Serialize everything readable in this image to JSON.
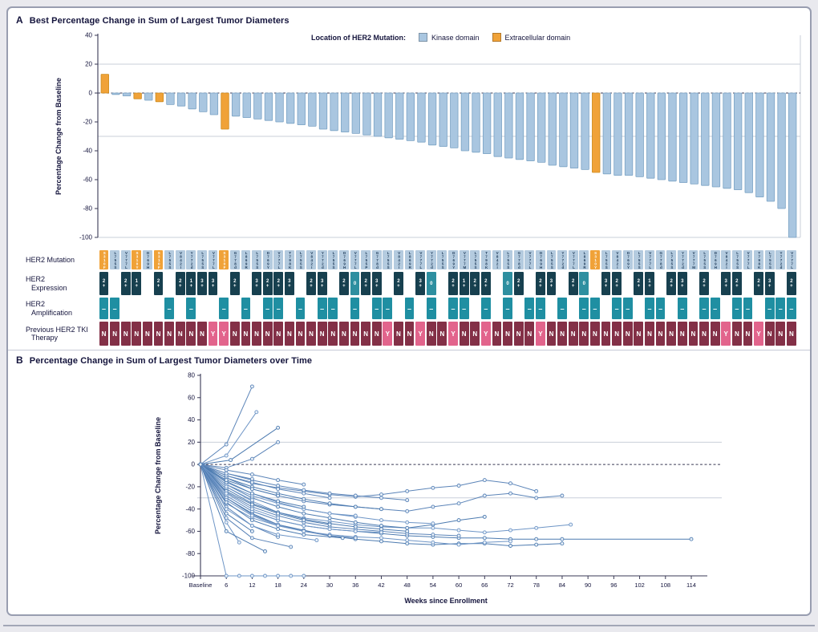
{
  "figure": {
    "colors": {
      "kinase": "#a9c6e0",
      "kinase_border": "#7aa2c4",
      "ecd": "#f0a238",
      "ecd_border": "#cd8a1c",
      "mut_cell": "#b4cbdf",
      "expression_dark": "#17404f",
      "expression_light": "#2e8fa0",
      "amplification": "#1f8fa2",
      "tki_no": "#833047",
      "tki_yes": "#e2648c",
      "line": "#5b84b8",
      "marker_fill": "#e8f0f8",
      "text": "#15153d",
      "grid": "#c9cfda",
      "axis": "#3a3a55"
    },
    "panel_a": {
      "label": "A",
      "title": "Best Percentage Change in Sum of Largest Tumor Diameters",
      "legend": {
        "title": "Location of HER2 Mutation:",
        "items": [
          {
            "label": "Kinase domain"
          },
          {
            "label": "Extracellular domain"
          }
        ]
      }
    },
    "panel_b": {
      "label": "B",
      "title": "Percentage Change in Sum of Largest Tumor Diameters over Time"
    },
    "tracks": {
      "rows": [
        {
          "id": "mutation",
          "label_lines": [
            "HER2 Mutation"
          ]
        },
        {
          "id": "expression",
          "label_lines": [
            "HER2",
            "Expression"
          ]
        },
        {
          "id": "amplification",
          "label_lines": [
            "HER2",
            "Amplification"
          ]
        },
        {
          "id": "tki",
          "label_lines": [
            "Previous HER2 TKI",
            "Therapy"
          ]
        }
      ],
      "mutation_codes": [
        "S310F",
        "L755S",
        "V777L",
        "S310Y",
        "D769H",
        "S310F",
        "L755S",
        "V842I",
        "Y772d",
        "L755S",
        "V777L",
        "S310F",
        "G778d",
        "L869R",
        "L755S",
        "D769Y",
        "V777L",
        "T798K",
        "L755S",
        "V842I",
        "Y772d",
        "L755S",
        "D769H",
        "V777L",
        "L755P",
        "G778d",
        "L755S",
        "V842I",
        "L869R",
        "V777L",
        "Y772d",
        "L755S",
        "D769Y",
        "V777M",
        "L755S",
        "T798K",
        "V842I",
        "L755S",
        "G778d",
        "V777L",
        "D769H",
        "L755S",
        "Y772d",
        "V777L",
        "L869R",
        "S310Y",
        "L755S",
        "V842I",
        "D769Y",
        "L755S",
        "V777L",
        "G778d",
        "L755S",
        "Y772d",
        "V777M",
        "L755S",
        "D769H",
        "V842I",
        "L755S",
        "V777L",
        "T798K",
        "L755S",
        "Y772d",
        "V777L"
      ],
      "expression": [
        "2+",
        "",
        "2+",
        "1+",
        "",
        "2+",
        "",
        "2+",
        "1+",
        "3+",
        "3+",
        "",
        "2+",
        "",
        "3+",
        "2+",
        "2+",
        "3+",
        "",
        "2+",
        "3+",
        "",
        "2+",
        "0",
        "2+",
        "3+",
        "",
        "2+",
        "",
        "3+",
        "0",
        "",
        "2+",
        "1+",
        "2+",
        "2+",
        "",
        "0",
        "2+",
        "",
        "2+",
        "3+",
        "",
        "2+",
        "0",
        "",
        "3+",
        "2+",
        "",
        "2+",
        "1+",
        "",
        "2+",
        "3+",
        "",
        "2+",
        "",
        "3+",
        "2+",
        "",
        "2+",
        "3+",
        "",
        "2+"
      ],
      "amplification": [
        "–",
        "–",
        "",
        "",
        "",
        "",
        "–",
        "",
        "–",
        "",
        "",
        "–",
        "",
        "–",
        "",
        "–",
        "–",
        "",
        "–",
        "",
        "–",
        "–",
        "",
        "–",
        "",
        "–",
        "–",
        "",
        "–",
        "",
        "–",
        "",
        "–",
        "–",
        "",
        "–",
        "",
        "–",
        "",
        "–",
        "–",
        "",
        "–",
        "",
        "–",
        "–",
        "",
        "–",
        "–",
        "",
        "–",
        "–",
        "",
        "–",
        "",
        "–",
        "–",
        "",
        "–",
        "–",
        "",
        "–",
        "–",
        "–"
      ],
      "tki": [
        "N",
        "N",
        "N",
        "N",
        "N",
        "N",
        "N",
        "N",
        "N",
        "N",
        "Y",
        "Y",
        "N",
        "N",
        "N",
        "N",
        "N",
        "N",
        "N",
        "N",
        "N",
        "N",
        "N",
        "N",
        "N",
        "N",
        "Y",
        "N",
        "N",
        "Y",
        "N",
        "N",
        "Y",
        "N",
        "N",
        "Y",
        "N",
        "N",
        "N",
        "N",
        "Y",
        "N",
        "N",
        "N",
        "N",
        "N",
        "N",
        "N",
        "N",
        "N",
        "N",
        "N",
        "N",
        "N",
        "N",
        "N",
        "N",
        "Y",
        "N",
        "N",
        "Y",
        "N",
        "N",
        "N"
      ]
    }
  },
  "chart_data": [
    {
      "type": "bar",
      "title": "Best Percentage Change in Sum of Largest Tumor Diameters",
      "ylabel": "Percentage Change from Baseline",
      "ylim": [
        -100,
        40
      ],
      "yticks": [
        40,
        20,
        0,
        -20,
        -40,
        -60,
        -80,
        -100
      ],
      "gridlines": [
        20,
        -30
      ],
      "zero_line": 0,
      "legend": [
        "Kinase domain",
        "Extracellular domain"
      ],
      "n_patients": 64,
      "values": [
        13,
        -1,
        -2,
        -4,
        -5,
        -6,
        -8,
        -9,
        -11,
        -13,
        -15,
        -25,
        -16,
        -17,
        -18,
        -19,
        -20,
        -21,
        -22,
        -23,
        -25,
        -26,
        -27,
        -28,
        -29,
        -30,
        -31,
        -32,
        -33,
        -34,
        -36,
        -37,
        -38,
        -40,
        -41,
        -42,
        -44,
        -45,
        -46,
        -47,
        -48,
        -50,
        -51,
        -52,
        -53,
        -55,
        -56,
        -57,
        -57,
        -58,
        -59,
        -60,
        -61,
        -62,
        -63,
        -64,
        -65,
        -66,
        -67,
        -69,
        -72,
        -75,
        -80,
        -100
      ],
      "ecd_indices": [
        0,
        3,
        5,
        11,
        45
      ]
    },
    {
      "type": "line",
      "title": "Percentage Change in Sum of Largest Tumor Diameters over Time",
      "xlabel": "Weeks since Enrollment",
      "ylabel": "Percentage Change from Baseline",
      "ylim": [
        -100,
        80
      ],
      "yticks": [
        80,
        60,
        40,
        20,
        0,
        -20,
        -40,
        -60,
        -80,
        -100
      ],
      "xtick_weeks": [
        0,
        6,
        12,
        18,
        24,
        30,
        36,
        42,
        48,
        54,
        60,
        66,
        72,
        78,
        84,
        90,
        96,
        102,
        108,
        114
      ],
      "xtick_labels": [
        "Baseline",
        "6",
        "12",
        "18",
        "24",
        "30",
        "36",
        "42",
        "48",
        "54",
        "60",
        "66",
        "72",
        "78",
        "84",
        "90",
        "96",
        "102",
        "108",
        "114"
      ],
      "gridlines": [
        20,
        -30
      ],
      "zero_line": 0,
      "series": [
        {
          "x": [
            0,
            6,
            12
          ],
          "y": [
            0,
            18,
            70
          ]
        },
        {
          "x": [
            0,
            6,
            13
          ],
          "y": [
            0,
            8,
            47
          ]
        },
        {
          "x": [
            0,
            7,
            18
          ],
          "y": [
            0,
            4,
            33
          ]
        },
        {
          "x": [
            0,
            6,
            12,
            18
          ],
          "y": [
            0,
            -3,
            5,
            20
          ]
        },
        {
          "x": [
            0,
            6,
            9,
            12,
            15,
            18,
            21,
            24
          ],
          "y": [
            0,
            -100,
            -100,
            -100,
            -100,
            -100,
            -100,
            -100
          ]
        },
        {
          "x": [
            0,
            6,
            12,
            18,
            24,
            30,
            36,
            42,
            48,
            54,
            60,
            66,
            72,
            78,
            84,
            114
          ],
          "y": [
            0,
            -28,
            -42,
            -50,
            -55,
            -58,
            -60,
            -62,
            -64,
            -65,
            -66,
            -66,
            -67,
            -67,
            -67,
            -67
          ]
        },
        {
          "x": [
            0,
            6,
            12,
            18,
            24,
            30,
            36,
            42,
            48,
            54,
            60,
            66,
            72,
            78,
            84
          ],
          "y": [
            0,
            -12,
            -22,
            -28,
            -33,
            -36,
            -38,
            -40,
            -42,
            -38,
            -35,
            -28,
            -26,
            -30,
            -28
          ]
        },
        {
          "x": [
            0,
            6,
            12,
            18,
            24,
            30,
            36,
            42,
            48,
            54,
            60,
            66,
            72,
            78,
            86
          ],
          "y": [
            0,
            -20,
            -33,
            -43,
            -48,
            -51,
            -54,
            -56,
            -57,
            -57,
            -59,
            -61,
            -59,
            -57,
            -54
          ]
        },
        {
          "x": [
            0,
            6,
            12,
            18,
            24,
            30,
            36,
            42,
            48,
            54,
            60,
            66,
            72,
            78,
            84
          ],
          "y": [
            0,
            -30,
            -44,
            -54,
            -59,
            -64,
            -67,
            -69,
            -71,
            -72,
            -71,
            -71,
            -73,
            -72,
            -71
          ]
        },
        {
          "x": [
            0,
            6,
            12,
            18,
            24,
            30,
            36,
            42,
            48,
            54,
            60,
            66,
            72,
            78
          ],
          "y": [
            0,
            -10,
            -17,
            -21,
            -24,
            -27,
            -29,
            -27,
            -24,
            -21,
            -19,
            -14,
            -17,
            -24
          ]
        },
        {
          "x": [
            0,
            6,
            12,
            18,
            24,
            30,
            36,
            42,
            48,
            54,
            60,
            66,
            72
          ],
          "y": [
            0,
            -35,
            -48,
            -55,
            -60,
            -63,
            -65,
            -66,
            -68,
            -70,
            -72,
            -70,
            -69
          ]
        },
        {
          "x": [
            0,
            6,
            12,
            18,
            24,
            30,
            36,
            42,
            48,
            54,
            60,
            66
          ],
          "y": [
            0,
            -18,
            -30,
            -38,
            -44,
            -48,
            -52,
            -55,
            -57,
            -54,
            -50,
            -47
          ]
        },
        {
          "x": [
            0,
            6,
            12,
            18,
            24,
            30,
            36,
            42,
            48,
            54,
            60
          ],
          "y": [
            0,
            -25,
            -38,
            -46,
            -52,
            -56,
            -58,
            -60,
            -62,
            -63,
            -64
          ]
        },
        {
          "x": [
            0,
            6,
            12,
            18,
            24,
            30,
            36,
            42,
            48,
            54
          ],
          "y": [
            0,
            -15,
            -26,
            -34,
            -40,
            -44,
            -47,
            -50,
            -52,
            -53
          ]
        },
        {
          "x": [
            0,
            6,
            12,
            18,
            24,
            30,
            36,
            42,
            48
          ],
          "y": [
            0,
            -22,
            -35,
            -43,
            -49,
            -53,
            -56,
            -58,
            -60
          ]
        },
        {
          "x": [
            0,
            6,
            12,
            18,
            24,
            30,
            36,
            42,
            48
          ],
          "y": [
            0,
            -8,
            -14,
            -19,
            -23,
            -26,
            -28,
            -30,
            -32
          ]
        },
        {
          "x": [
            0,
            6,
            12,
            18,
            24,
            30,
            36,
            42
          ],
          "y": [
            0,
            -28,
            -42,
            -50,
            -55,
            -58,
            -60,
            -61
          ]
        },
        {
          "x": [
            0,
            6,
            12,
            18,
            24,
            30,
            36,
            42
          ],
          "y": [
            0,
            -12,
            -20,
            -26,
            -31,
            -35,
            -38,
            -40
          ]
        },
        {
          "x": [
            0,
            6,
            12,
            18,
            24,
            30,
            36
          ],
          "y": [
            0,
            -30,
            -45,
            -54,
            -60,
            -64,
            -66
          ]
        },
        {
          "x": [
            0,
            6,
            12,
            18,
            24,
            30,
            36
          ],
          "y": [
            0,
            -18,
            -28,
            -35,
            -40,
            -44,
            -46
          ]
        },
        {
          "x": [
            0,
            6,
            12,
            18,
            24,
            30
          ],
          "y": [
            0,
            -24,
            -36,
            -44,
            -50,
            -54
          ]
        },
        {
          "x": [
            0,
            6,
            12,
            18,
            24,
            30
          ],
          "y": [
            0,
            -10,
            -16,
            -22,
            -26,
            -30
          ]
        },
        {
          "x": [
            0,
            6,
            12,
            18,
            24
          ],
          "y": [
            0,
            -32,
            -46,
            -55,
            -60
          ]
        },
        {
          "x": [
            0,
            6,
            12,
            18,
            24
          ],
          "y": [
            0,
            -16,
            -26,
            -33,
            -38
          ]
        },
        {
          "x": [
            0,
            6,
            12,
            18,
            24
          ],
          "y": [
            0,
            -5,
            -9,
            -14,
            -18
          ]
        },
        {
          "x": [
            0,
            6,
            12,
            18
          ],
          "y": [
            0,
            -26,
            -40,
            -48
          ]
        },
        {
          "x": [
            0,
            6,
            12,
            18
          ],
          "y": [
            0,
            -14,
            -22,
            -28
          ]
        },
        {
          "x": [
            0,
            6,
            12,
            18
          ],
          "y": [
            0,
            -38,
            -55,
            -65
          ]
        },
        {
          "x": [
            0,
            6,
            12
          ],
          "y": [
            0,
            -20,
            -32
          ]
        },
        {
          "x": [
            0,
            6,
            12
          ],
          "y": [
            0,
            -44,
            -60
          ]
        },
        {
          "x": [
            0,
            6,
            12
          ],
          "y": [
            0,
            -8,
            -13
          ]
        },
        {
          "x": [
            0,
            6,
            9
          ],
          "y": [
            0,
            -52,
            -70
          ]
        },
        {
          "x": [
            0,
            6,
            15
          ],
          "y": [
            0,
            -60,
            -78
          ]
        },
        {
          "x": [
            0,
            6,
            12,
            21
          ],
          "y": [
            0,
            -48,
            -66,
            -74
          ]
        },
        {
          "x": [
            0,
            6,
            12,
            18,
            27
          ],
          "y": [
            0,
            -40,
            -55,
            -63,
            -68
          ]
        },
        {
          "x": [
            0,
            6,
            12,
            18,
            24,
            33
          ],
          "y": [
            0,
            -34,
            -50,
            -58,
            -63,
            -66
          ]
        }
      ]
    }
  ]
}
